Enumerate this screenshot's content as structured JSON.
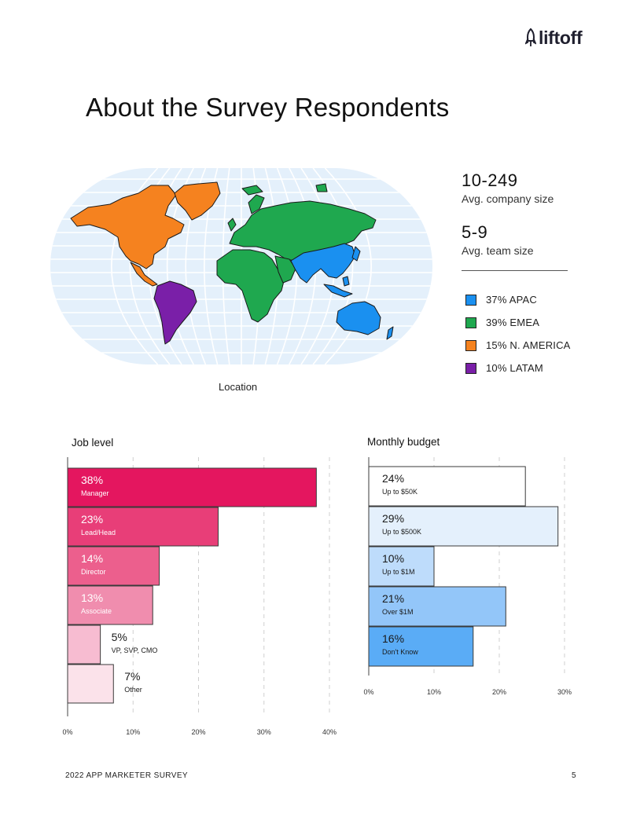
{
  "brand": {
    "name": "liftoff"
  },
  "title": "About the Survey Respondents",
  "map": {
    "caption": "Location",
    "colors": {
      "apac": "#1a90f0",
      "emea": "#1fa84f",
      "namerica": "#f5821f",
      "latam": "#7a1fa8",
      "ocean": "#e4f0fb",
      "grid": "#ffffff"
    }
  },
  "stats": [
    {
      "value": "10-249",
      "label": "Avg. company size"
    },
    {
      "value": "5-9",
      "label": "Avg. team size"
    }
  ],
  "legend": [
    {
      "label": "37% APAC",
      "color": "#1a90f0"
    },
    {
      "label": "39% EMEA",
      "color": "#1fa84f"
    },
    {
      "label": "15% N. AMERICA",
      "color": "#f5821f"
    },
    {
      "label": "10% LATAM",
      "color": "#7a1fa8"
    }
  ],
  "chart_data": [
    {
      "type": "bar",
      "orientation": "horizontal",
      "title": "Job level",
      "categories": [
        "Manager",
        "Lead/Head",
        "Director",
        "Associate",
        "VP, SVP, CMO",
        "Other"
      ],
      "values": [
        38,
        23,
        14,
        13,
        5,
        7
      ],
      "value_labels": [
        "38%",
        "23%",
        "14%",
        "13%",
        "5%",
        "7%"
      ],
      "colors": [
        "#e4165f",
        "#e83e78",
        "#ec5f8d",
        "#f08dae",
        "#f7bcd1",
        "#fbe2ea"
      ],
      "xlim": [
        0,
        40
      ],
      "xticks": [
        "0%",
        "10%",
        "20%",
        "30%",
        "40%"
      ],
      "xtick_values": [
        0,
        10,
        20,
        30,
        40
      ],
      "label_inside": [
        true,
        true,
        true,
        true,
        false,
        false
      ]
    },
    {
      "type": "bar",
      "orientation": "horizontal",
      "title": "Monthly budget",
      "categories": [
        "Up to $50K",
        "Up to $500K",
        "Up to $1M",
        "Over $1M",
        "Don't Know"
      ],
      "values": [
        24,
        29,
        10,
        21,
        16
      ],
      "value_labels": [
        "24%",
        "29%",
        "10%",
        "21%",
        "16%"
      ],
      "colors": [
        "#ffffff",
        "#e4f0fc",
        "#bedcfb",
        "#93c6f9",
        "#5aacf6"
      ],
      "xlim": [
        0,
        30
      ],
      "xticks": [
        "0%",
        "10%",
        "20%",
        "30%"
      ],
      "xtick_values": [
        0,
        10,
        20,
        30
      ],
      "label_inside": [
        true,
        true,
        true,
        true,
        true
      ]
    }
  ],
  "footer": {
    "left": "2022 APP MARKETER SURVEY",
    "page": "5"
  }
}
